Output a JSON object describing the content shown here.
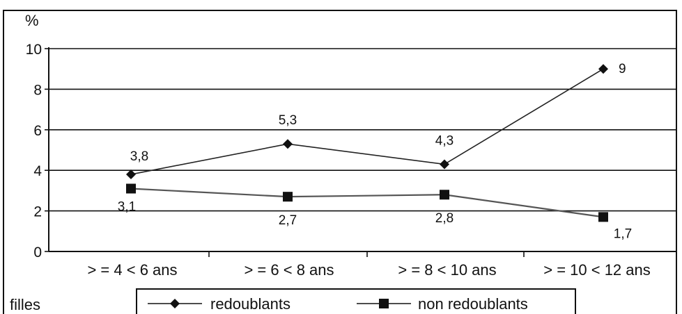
{
  "chart_data": {
    "type": "line",
    "ylabel": "%",
    "ylim": [
      0,
      10
    ],
    "yticks": [
      0,
      2,
      4,
      6,
      8,
      10
    ],
    "categories": [
      ">= = 4 < 6 ans",
      ">= = 6 < 8 ans",
      ">= = 8 < 10 ans",
      ">= = 10 < 12 ans"
    ],
    "category_labels": [
      "> = 4 < 6 ans",
      "> = 6 < 8 ans",
      "> = 8 < 10 ans",
      "> = 10 < 12 ans"
    ],
    "subgroup_label": "filles",
    "grid": true,
    "legend_position": "bottom",
    "series": [
      {
        "name": "redoublants",
        "marker": "diamond",
        "values": [
          3.8,
          5.3,
          4.3,
          9
        ],
        "value_labels": [
          "3,8",
          "5,3",
          "4,3",
          "9"
        ]
      },
      {
        "name": "non redoublants",
        "marker": "square",
        "values": [
          3.1,
          2.7,
          2.8,
          1.7
        ],
        "value_labels": [
          "3,1",
          "2,7",
          "2,8",
          "1,7"
        ]
      }
    ]
  }
}
